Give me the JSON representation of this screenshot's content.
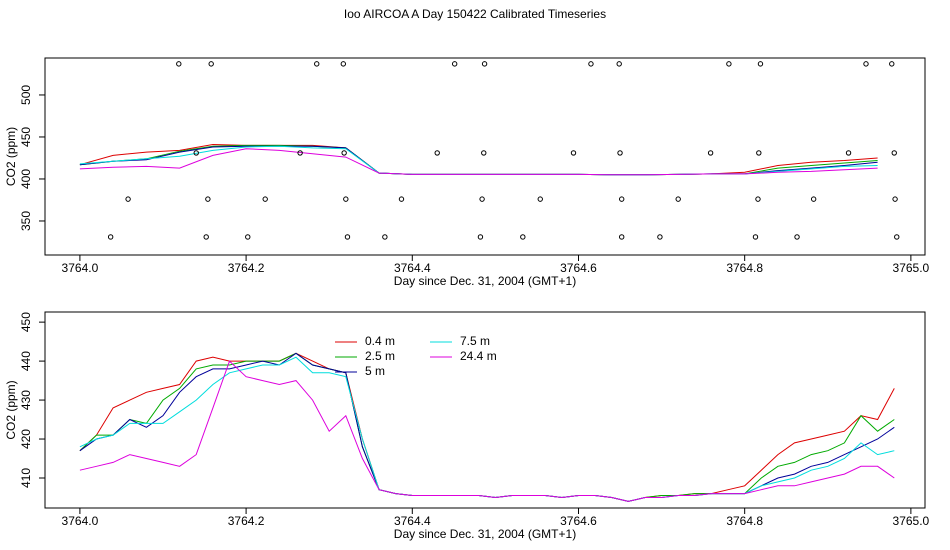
{
  "chart_data": [
    {
      "type": "line",
      "title": "Ioo AIRCOA A  Day 150422  Calibrated Timeseries",
      "xlabel": "Day since Dec. 31, 2004 (GMT+1)",
      "ylabel": "CO2 (ppm)",
      "xlim": [
        3763.958,
        3765.017
      ],
      "ylim": [
        309.5,
        544
      ],
      "xticks": [
        {
          "value": 3764,
          "label": "3764.0"
        },
        3764.2,
        3764.4,
        3764.6,
        3764.8,
        {
          "value": 3765,
          "label": "3765.0"
        }
      ],
      "yticks": [
        350,
        400,
        450,
        500
      ],
      "x": [
        3764.0,
        3764.04,
        3764.08,
        3764.12,
        3764.16,
        3764.2,
        3764.24,
        3764.28,
        3764.32,
        3764.36,
        3764.4,
        3764.44,
        3764.48,
        3764.52,
        3764.56,
        3764.6,
        3764.64,
        3764.68,
        3764.72,
        3764.76,
        3764.8,
        3764.84,
        3764.88,
        3764.92,
        3764.96
      ],
      "series": [
        {
          "color": "#dd0000",
          "values": [
            417,
            428,
            432,
            434,
            441,
            440,
            440,
            440,
            437,
            407,
            405.5,
            405.5,
            405.5,
            405.5,
            405.5,
            405.5,
            405,
            405,
            405.5,
            406,
            408,
            416,
            420,
            422,
            425
          ]
        },
        {
          "color": "#00aa00",
          "values": [
            417,
            421,
            424,
            433,
            439,
            440,
            440,
            439,
            437,
            407,
            405.5,
            405.5,
            405.5,
            405.5,
            405.5,
            405.5,
            405,
            405,
            405.5,
            406,
            406,
            413,
            416,
            419,
            422
          ]
        },
        {
          "color": "#000099",
          "values": [
            417,
            421,
            423,
            432,
            438,
            439,
            439,
            439,
            437,
            407,
            405.5,
            405.5,
            405.5,
            405.5,
            405.5,
            405.5,
            405,
            405,
            405.5,
            406,
            406,
            410,
            413,
            416,
            420
          ]
        },
        {
          "color": "#00dddd",
          "values": [
            418,
            421,
            424,
            427,
            434,
            438,
            439,
            437,
            436,
            407,
            405.5,
            405.5,
            405.5,
            405.5,
            405.5,
            405.5,
            405,
            405,
            405.5,
            406,
            406,
            409,
            412,
            415,
            416
          ]
        },
        {
          "color": "#dd00dd",
          "values": [
            412,
            414,
            415,
            413,
            428,
            436,
            434,
            430,
            426,
            407,
            405.5,
            405.5,
            405.5,
            405.5,
            405.5,
            405.5,
            405,
            405,
            405.5,
            406,
            406,
            408,
            409,
            411,
            413
          ]
        }
      ],
      "scatter": {
        "x": [
          3764.119,
          3764.158,
          3764.285,
          3764.317,
          3764.451,
          3764.487,
          3764.615,
          3764.649,
          3764.781,
          3764.819,
          3764.946,
          3764.977,
          3764.14,
          3764.265,
          3764.318,
          3764.43,
          3764.486,
          3764.594,
          3764.65,
          3764.759,
          3764.817,
          3764.925,
          3764.98,
          3764.058,
          3764.154,
          3764.223,
          3764.32,
          3764.387,
          3764.484,
          3764.554,
          3764.652,
          3764.72,
          3764.816,
          3764.883,
          3764.981,
          3764.037,
          3764.152,
          3764.202,
          3764.322,
          3764.367,
          3764.482,
          3764.533,
          3764.652,
          3764.698,
          3764.813,
          3764.863,
          3764.983
        ],
        "y": [
          537,
          537,
          537,
          537,
          537,
          537,
          537,
          537,
          537,
          537,
          537,
          537,
          431,
          431,
          431,
          431,
          431,
          431,
          431,
          431,
          431,
          431,
          431,
          376,
          376,
          376,
          376,
          376,
          376,
          376,
          376,
          376,
          376,
          376,
          376,
          331,
          331,
          331,
          331,
          331,
          331,
          331,
          331,
          331,
          331,
          331,
          331
        ]
      }
    },
    {
      "type": "line",
      "xlabel": "Day since Dec. 31, 2004 (GMT+1)",
      "ylabel": "CO2 (ppm)",
      "xlim": [
        3763.958,
        3765.017
      ],
      "ylim": [
        402.3,
        452.6
      ],
      "xticks": [
        {
          "value": 3764,
          "label": "3764.0"
        },
        3764.2,
        3764.4,
        3764.6,
        3764.8,
        {
          "value": 3765,
          "label": "3765.0"
        }
      ],
      "yticks": [
        410,
        420,
        430,
        440,
        450
      ],
      "legend": "upper left",
      "x": [
        3764.0,
        3764.02,
        3764.04,
        3764.06,
        3764.08,
        3764.1,
        3764.12,
        3764.14,
        3764.16,
        3764.18,
        3764.2,
        3764.22,
        3764.24,
        3764.26,
        3764.28,
        3764.3,
        3764.32,
        3764.34,
        3764.36,
        3764.38,
        3764.4,
        3764.42,
        3764.44,
        3764.46,
        3764.48,
        3764.5,
        3764.52,
        3764.54,
        3764.56,
        3764.58,
        3764.6,
        3764.62,
        3764.64,
        3764.66,
        3764.68,
        3764.7,
        3764.72,
        3764.74,
        3764.76,
        3764.78,
        3764.8,
        3764.82,
        3764.84,
        3764.86,
        3764.88,
        3764.9,
        3764.92,
        3764.94,
        3764.96,
        3764.98
      ],
      "series": [
        {
          "name": "0.4 m",
          "color": "#dd0000",
          "values": [
            417,
            421,
            428,
            430,
            432,
            433,
            434,
            440,
            441,
            440,
            440,
            440,
            440,
            442,
            440,
            438,
            437,
            420,
            407,
            406,
            405.5,
            405.5,
            405.5,
            405.5,
            405.5,
            405,
            405.5,
            405.5,
            405.5,
            405,
            405.5,
            405.5,
            405,
            404,
            405,
            405.5,
            405.5,
            406,
            406,
            407,
            408,
            412,
            416,
            419,
            420,
            421,
            422,
            426,
            425,
            433
          ]
        },
        {
          "name": "2.5 m",
          "color": "#00aa00",
          "values": [
            417,
            421,
            421,
            425,
            424,
            430,
            433,
            438,
            439,
            439,
            440,
            440,
            440,
            442,
            439,
            438,
            437,
            418,
            407,
            406,
            405.5,
            405.5,
            405.5,
            405.5,
            405.5,
            405,
            405.5,
            405.5,
            405.5,
            405,
            405.5,
            405.5,
            405,
            404,
            405,
            405.5,
            405.5,
            406,
            406,
            406,
            406,
            410,
            413,
            414,
            416,
            417,
            419,
            426,
            422,
            425
          ]
        },
        {
          "name": "5 m",
          "color": "#000099",
          "values": [
            417,
            420,
            421,
            425,
            423,
            426,
            432,
            436,
            438,
            438,
            439,
            440,
            439,
            442,
            439,
            438,
            437,
            418,
            407,
            406,
            405.5,
            405.5,
            405.5,
            405.5,
            405.5,
            405,
            405.5,
            405.5,
            405.5,
            405,
            405.5,
            405.5,
            405,
            404,
            405,
            405,
            405.5,
            405.5,
            406,
            406,
            406,
            408,
            410,
            411,
            413,
            414,
            416,
            418,
            420,
            423
          ]
        },
        {
          "name": "7.5 m",
          "color": "#00dddd",
          "values": [
            418,
            420,
            421,
            424,
            424,
            424,
            427,
            430,
            434,
            437,
            438,
            439,
            439,
            441,
            437,
            437,
            436,
            420,
            407,
            406,
            405.5,
            405.5,
            405.5,
            405.5,
            405.5,
            405,
            405.5,
            405.5,
            405.5,
            405,
            405.5,
            405.5,
            405,
            404,
            405,
            405,
            405.5,
            405.5,
            406,
            406,
            406,
            408,
            409,
            410,
            412,
            413,
            415,
            419,
            416,
            417
          ]
        },
        {
          "name": "24.4 m",
          "color": "#dd00dd",
          "values": [
            412,
            413,
            414,
            416,
            415,
            414,
            413,
            416,
            428,
            440,
            436,
            435,
            434,
            435,
            430,
            422,
            426,
            415,
            407,
            406,
            405.5,
            405.5,
            405.5,
            405.5,
            405.5,
            405,
            405.5,
            405.5,
            405.5,
            405,
            405.5,
            405.5,
            405,
            404,
            405,
            405,
            405.5,
            405.5,
            406,
            406,
            406,
            407,
            408,
            408,
            409,
            410,
            411,
            413,
            413,
            410
          ]
        }
      ]
    }
  ]
}
